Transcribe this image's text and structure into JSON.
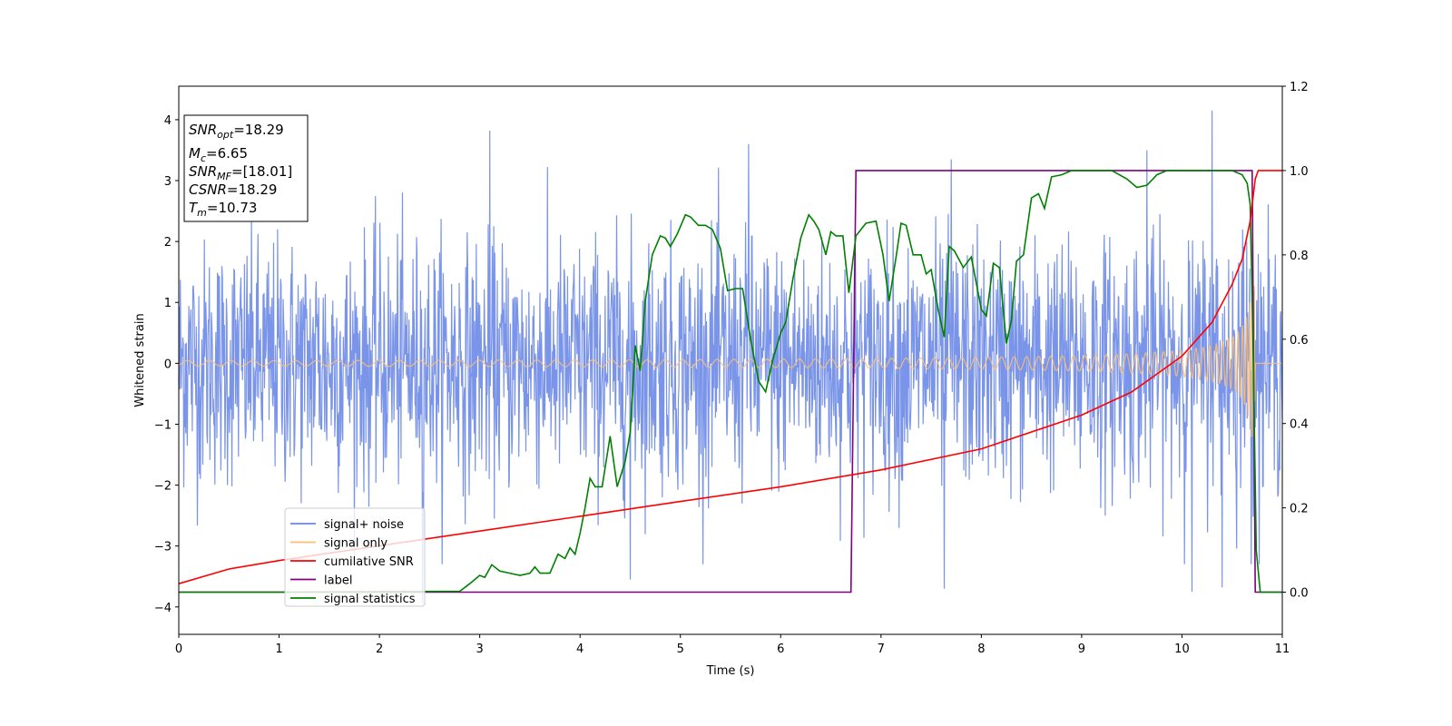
{
  "chart_data": {
    "type": "line",
    "title": "",
    "xlabel": "Time (s)",
    "ylabel": "Whitened strain",
    "y2label": "",
    "xlim": [
      0,
      11
    ],
    "ylim": [
      -4.45,
      4.55
    ],
    "y2lim": [
      -0.1,
      1.2
    ],
    "xticks": [
      0,
      1,
      2,
      3,
      4,
      5,
      6,
      7,
      8,
      9,
      10,
      11
    ],
    "yticks": [
      -4,
      -3,
      -2,
      -1,
      0,
      1,
      2,
      3,
      4
    ],
    "y2ticks": [
      "0.0",
      "0.2",
      "0.4",
      "0.6",
      "0.8",
      "1.0",
      "1.2"
    ],
    "grid": false,
    "legend_position": "lower-left",
    "annotation": {
      "snr_opt": "=18.29",
      "mc": "=6.65",
      "snr_mf": "=[18.01]",
      "csnr": "=18.29",
      "tm": "=10.73"
    },
    "series": [
      {
        "name": "signal+ noise",
        "axis": "left",
        "color": "#6a88e6",
        "description_values": {
          "noise_rms": 1.0,
          "typical_range": [
            -3.3,
            3.3
          ],
          "max": 4.15,
          "min": -3.95
        },
        "spikes": [
          [
            3.1,
            3.82
          ],
          [
            5.68,
            3.6
          ],
          [
            7.7,
            3.35
          ],
          [
            9.65,
            3.5
          ],
          [
            10.3,
            4.15
          ],
          [
            2.43,
            -3.95
          ],
          [
            4.5,
            -3.55
          ],
          [
            7.63,
            -3.7
          ],
          [
            10.1,
            -3.75
          ],
          [
            10.4,
            -3.68
          ]
        ]
      },
      {
        "name": "signal only",
        "axis": "left",
        "color": "#ffbf72",
        "description_values": {
          "chirp_start_amp": 0.05,
          "peak_time": 10.73,
          "peak_amp": 1.35
        }
      },
      {
        "name": "cumilative SNR",
        "axis": "right",
        "color": "#ff0000",
        "points": [
          [
            0,
            0.02
          ],
          [
            0.5,
            0.055
          ],
          [
            1,
            0.075
          ],
          [
            2,
            0.11
          ],
          [
            3,
            0.145
          ],
          [
            4,
            0.18
          ],
          [
            5,
            0.215
          ],
          [
            6,
            0.25
          ],
          [
            7,
            0.29
          ],
          [
            8,
            0.34
          ],
          [
            9,
            0.42
          ],
          [
            9.5,
            0.475
          ],
          [
            10,
            0.56
          ],
          [
            10.3,
            0.64
          ],
          [
            10.5,
            0.73
          ],
          [
            10.6,
            0.79
          ],
          [
            10.68,
            0.88
          ],
          [
            10.73,
            0.98
          ],
          [
            10.76,
            1.0
          ],
          [
            11,
            1.0
          ]
        ]
      },
      {
        "name": "label",
        "axis": "right",
        "color": "#800080",
        "points": [
          [
            0,
            0
          ],
          [
            6.7,
            0
          ],
          [
            6.75,
            1
          ],
          [
            10.7,
            1
          ],
          [
            10.73,
            0
          ],
          [
            11,
            0
          ]
        ]
      },
      {
        "name": "signal statistics",
        "axis": "right",
        "color": "#008000",
        "points": [
          [
            0,
            0
          ],
          [
            1,
            0
          ],
          [
            2.8,
            0.002
          ],
          [
            2.9,
            0.02
          ],
          [
            3.0,
            0.04
          ],
          [
            3.05,
            0.035
          ],
          [
            3.12,
            0.065
          ],
          [
            3.2,
            0.05
          ],
          [
            3.3,
            0.045
          ],
          [
            3.4,
            0.04
          ],
          [
            3.5,
            0.045
          ],
          [
            3.55,
            0.06
          ],
          [
            3.6,
            0.045
          ],
          [
            3.7,
            0.045
          ],
          [
            3.78,
            0.09
          ],
          [
            3.85,
            0.08
          ],
          [
            3.9,
            0.105
          ],
          [
            3.95,
            0.09
          ],
          [
            4.0,
            0.14
          ],
          [
            4.05,
            0.2
          ],
          [
            4.1,
            0.27
          ],
          [
            4.15,
            0.25
          ],
          [
            4.22,
            0.25
          ],
          [
            4.3,
            0.37
          ],
          [
            4.37,
            0.25
          ],
          [
            4.45,
            0.31
          ],
          [
            4.5,
            0.38
          ],
          [
            4.55,
            0.585
          ],
          [
            4.6,
            0.525
          ],
          [
            4.65,
            0.69
          ],
          [
            4.72,
            0.8
          ],
          [
            4.8,
            0.845
          ],
          [
            4.85,
            0.84
          ],
          [
            4.9,
            0.82
          ],
          [
            4.97,
            0.85
          ],
          [
            5.05,
            0.895
          ],
          [
            5.1,
            0.89
          ],
          [
            5.18,
            0.87
          ],
          [
            5.25,
            0.87
          ],
          [
            5.32,
            0.86
          ],
          [
            5.4,
            0.815
          ],
          [
            5.47,
            0.715
          ],
          [
            5.55,
            0.72
          ],
          [
            5.62,
            0.72
          ],
          [
            5.7,
            0.6
          ],
          [
            5.78,
            0.5
          ],
          [
            5.85,
            0.475
          ],
          [
            5.92,
            0.55
          ],
          [
            6.0,
            0.615
          ],
          [
            6.05,
            0.64
          ],
          [
            6.12,
            0.74
          ],
          [
            6.2,
            0.84
          ],
          [
            6.28,
            0.895
          ],
          [
            6.33,
            0.88
          ],
          [
            6.38,
            0.86
          ],
          [
            6.45,
            0.8
          ],
          [
            6.5,
            0.855
          ],
          [
            6.55,
            0.845
          ],
          [
            6.62,
            0.845
          ],
          [
            6.68,
            0.71
          ],
          [
            6.75,
            0.845
          ],
          [
            6.85,
            0.875
          ],
          [
            6.95,
            0.88
          ],
          [
            7.02,
            0.8
          ],
          [
            7.08,
            0.69
          ],
          [
            7.15,
            0.795
          ],
          [
            7.2,
            0.875
          ],
          [
            7.25,
            0.87
          ],
          [
            7.32,
            0.8
          ],
          [
            7.4,
            0.8
          ],
          [
            7.45,
            0.755
          ],
          [
            7.5,
            0.765
          ],
          [
            7.57,
            0.67
          ],
          [
            7.63,
            0.605
          ],
          [
            7.68,
            0.82
          ],
          [
            7.73,
            0.81
          ],
          [
            7.82,
            0.77
          ],
          [
            7.9,
            0.795
          ],
          [
            8.0,
            0.67
          ],
          [
            8.05,
            0.655
          ],
          [
            8.12,
            0.78
          ],
          [
            8.18,
            0.77
          ],
          [
            8.25,
            0.59
          ],
          [
            8.3,
            0.645
          ],
          [
            8.35,
            0.785
          ],
          [
            8.42,
            0.8
          ],
          [
            8.5,
            0.935
          ],
          [
            8.57,
            0.945
          ],
          [
            8.63,
            0.91
          ],
          [
            8.7,
            0.985
          ],
          [
            8.8,
            0.99
          ],
          [
            8.9,
            1.0
          ],
          [
            9.3,
            1.0
          ],
          [
            9.45,
            0.98
          ],
          [
            9.55,
            0.96
          ],
          [
            9.65,
            0.965
          ],
          [
            9.75,
            0.99
          ],
          [
            9.85,
            1.0
          ],
          [
            10.5,
            1.0
          ],
          [
            10.6,
            0.99
          ],
          [
            10.65,
            0.97
          ],
          [
            10.68,
            0.92
          ],
          [
            10.71,
            0.58
          ],
          [
            10.74,
            0.1
          ],
          [
            10.78,
            0.0
          ],
          [
            11,
            0
          ]
        ]
      }
    ]
  }
}
